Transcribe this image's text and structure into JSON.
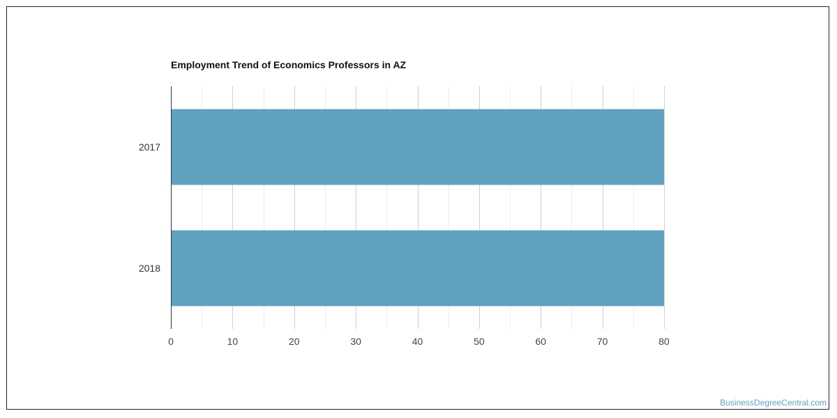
{
  "chart_data": {
    "type": "bar",
    "orientation": "horizontal",
    "title": "Employment Trend of Economics Professors in AZ",
    "categories": [
      "2017",
      "2018"
    ],
    "values": [
      80,
      80
    ],
    "xlim": [
      0,
      80
    ],
    "xticks": [
      0,
      10,
      20,
      30,
      40,
      50,
      60,
      70,
      80
    ],
    "xlabel": "",
    "ylabel": "",
    "grid": true,
    "legend": "none",
    "bar_color": "#5fa2bf"
  },
  "watermark": "BusinessDegreeCentral.com"
}
